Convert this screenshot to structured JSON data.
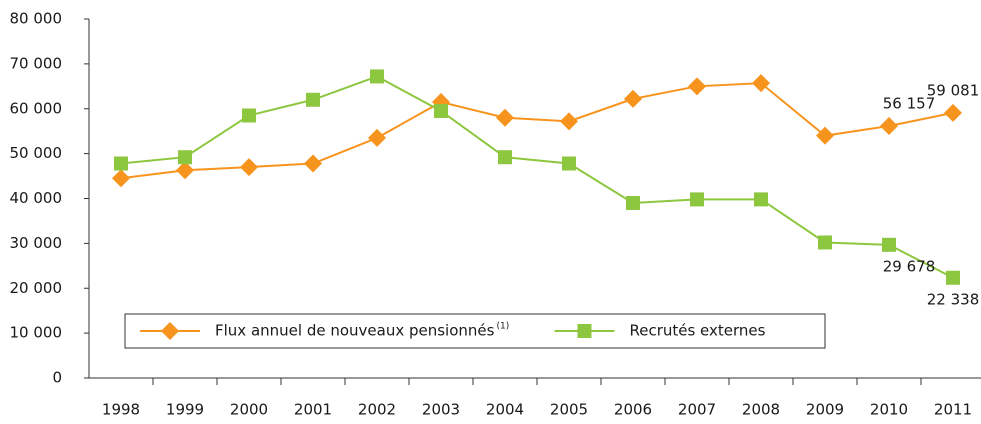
{
  "chart_data": {
    "type": "line",
    "categories": [
      "1998",
      "1999",
      "2000",
      "2001",
      "2002",
      "2003",
      "2004",
      "2005",
      "2006",
      "2007",
      "2008",
      "2009",
      "2010",
      "2011"
    ],
    "series": [
      {
        "name": "Flux annuel de nouveaux pensionnés",
        "name_note": "(1)",
        "color": "#f7941d",
        "marker": "diamond",
        "values": [
          44500,
          46300,
          47000,
          47800,
          53500,
          61500,
          58000,
          57200,
          62200,
          65000,
          65700,
          54000,
          56157,
          59081
        ],
        "value_labels": [
          null,
          null,
          null,
          null,
          null,
          null,
          null,
          null,
          null,
          null,
          null,
          null,
          "56 157",
          "59 081"
        ]
      },
      {
        "name": "Recrutés externes",
        "color": "#8dc63f",
        "marker": "square",
        "values": [
          47800,
          49200,
          58500,
          62000,
          67200,
          59500,
          49200,
          47800,
          39000,
          39800,
          39800,
          30200,
          29678,
          22338
        ],
        "value_labels": [
          null,
          null,
          null,
          null,
          null,
          null,
          null,
          null,
          null,
          null,
          null,
          null,
          "29 678",
          "22 338"
        ]
      }
    ],
    "ylim": [
      0,
      80000
    ],
    "yticks": [
      0,
      {
        "value": 10000,
        "label": "10 000"
      },
      {
        "value": 20000,
        "label": "20 000"
      },
      {
        "value": 30000,
        "label": "30 000"
      },
      {
        "value": 40000,
        "label": "40 000"
      },
      {
        "value": 50000,
        "label": "50 000"
      },
      {
        "value": 60000,
        "label": "60 000"
      },
      {
        "value": 70000,
        "label": "70 000"
      },
      {
        "value": 80000,
        "label": "80 000"
      }
    ],
    "grid": false,
    "legend": "bottom-left"
  }
}
